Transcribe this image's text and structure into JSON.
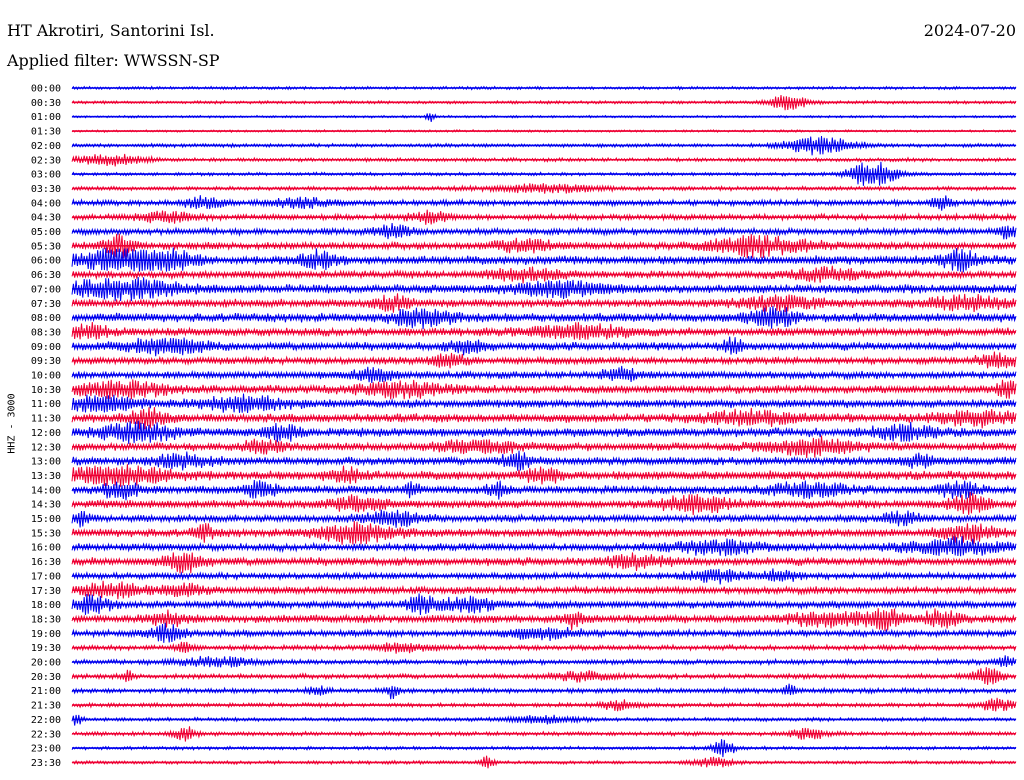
{
  "header": {
    "station": "HT Akrotiri, Santorini Isl.",
    "filter": "Applied filter: WWSSN-SP",
    "date": "2024-07-20"
  },
  "colors": {
    "trace_a": "#0000ee",
    "trace_b": "#ee0033",
    "text": "#000000",
    "background": "#ffffff"
  },
  "chart_data": {
    "type": "line",
    "title": "HT Akrotiri, Santorini Isl.",
    "subtitle": "Applied filter: WWSSN-SP",
    "ylabel": "HHZ - 3000",
    "xlabel": "",
    "grid": false,
    "rows": [
      {
        "label": "00:00",
        "color": "a",
        "noise": 0.18,
        "events": []
      },
      {
        "label": "00:30",
        "color": "b",
        "noise": 0.18,
        "events": [
          [
            0.76,
            0.9,
            0.02
          ]
        ]
      },
      {
        "label": "01:00",
        "color": "a",
        "noise": 0.14,
        "events": [
          [
            0.38,
            0.5,
            0.005
          ]
        ]
      },
      {
        "label": "01:30",
        "color": "b",
        "noise": 0.14,
        "events": []
      },
      {
        "label": "02:00",
        "color": "a",
        "noise": 0.22,
        "events": [
          [
            0.8,
            0.55,
            0.04
          ],
          [
            0.78,
            0.45,
            0.03
          ]
        ]
      },
      {
        "label": "02:30",
        "color": "b",
        "noise": 0.22,
        "events": [
          [
            0.04,
            0.55,
            0.04
          ]
        ]
      },
      {
        "label": "03:00",
        "color": "a",
        "noise": 0.2,
        "events": [
          [
            0.85,
            1.2,
            0.025
          ],
          [
            0.84,
            0.6,
            0.015
          ]
        ]
      },
      {
        "label": "03:30",
        "color": "b",
        "noise": 0.25,
        "events": [
          [
            0.5,
            0.4,
            0.06
          ]
        ]
      },
      {
        "label": "04:00",
        "color": "a",
        "noise": 0.35,
        "events": [
          [
            0.14,
            0.6,
            0.02
          ],
          [
            0.24,
            0.5,
            0.03
          ],
          [
            0.92,
            0.7,
            0.01
          ]
        ]
      },
      {
        "label": "04:30",
        "color": "b",
        "noise": 0.35,
        "events": [
          [
            0.1,
            0.5,
            0.03
          ],
          [
            0.38,
            0.6,
            0.02
          ]
        ]
      },
      {
        "label": "05:00",
        "color": "a",
        "noise": 0.4,
        "events": [
          [
            0.34,
            0.6,
            0.02
          ],
          [
            0.99,
            0.8,
            0.01
          ]
        ]
      },
      {
        "label": "05:30",
        "color": "b",
        "noise": 0.45,
        "events": [
          [
            0.05,
            1.1,
            0.015
          ],
          [
            0.72,
            1.0,
            0.01
          ],
          [
            0.48,
            0.7,
            0.03
          ],
          [
            0.73,
            0.8,
            0.06
          ]
        ]
      },
      {
        "label": "06:00",
        "color": "a",
        "noise": 0.55,
        "events": [
          [
            0.05,
            1.0,
            0.05
          ],
          [
            0.1,
            1.0,
            0.03
          ],
          [
            0.26,
            0.8,
            0.02
          ],
          [
            0.94,
            0.9,
            0.02
          ]
        ]
      },
      {
        "label": "06:30",
        "color": "b",
        "noise": 0.45,
        "events": [
          [
            0.48,
            0.6,
            0.04
          ],
          [
            0.8,
            0.6,
            0.04
          ]
        ]
      },
      {
        "label": "07:00",
        "color": "a",
        "noise": 0.55,
        "events": [
          [
            0.05,
            1.0,
            0.06
          ],
          [
            0.52,
            0.7,
            0.05
          ]
        ]
      },
      {
        "label": "07:30",
        "color": "b",
        "noise": 0.5,
        "events": [
          [
            0.34,
            0.7,
            0.02
          ],
          [
            0.75,
            0.6,
            0.05
          ],
          [
            0.95,
            0.7,
            0.04
          ]
        ]
      },
      {
        "label": "08:00",
        "color": "a",
        "noise": 0.55,
        "events": [
          [
            0.37,
            0.9,
            0.03
          ],
          [
            0.74,
            1.0,
            0.025
          ]
        ]
      },
      {
        "label": "08:30",
        "color": "b",
        "noise": 0.5,
        "events": [
          [
            0.02,
            0.7,
            0.02
          ],
          [
            0.54,
            0.7,
            0.05
          ]
        ]
      },
      {
        "label": "09:00",
        "color": "a",
        "noise": 0.5,
        "events": [
          [
            0.1,
            0.8,
            0.04
          ],
          [
            0.42,
            0.6,
            0.02
          ],
          [
            0.7,
            0.8,
            0.01
          ]
        ]
      },
      {
        "label": "09:30",
        "color": "b",
        "noise": 0.45,
        "events": [
          [
            0.4,
            0.6,
            0.02
          ],
          [
            0.98,
            0.7,
            0.02
          ]
        ]
      },
      {
        "label": "10:00",
        "color": "a",
        "noise": 0.45,
        "events": [
          [
            0.32,
            0.7,
            0.02
          ],
          [
            0.58,
            0.6,
            0.02
          ]
        ]
      },
      {
        "label": "10:30",
        "color": "b",
        "noise": 0.5,
        "events": [
          [
            0.05,
            0.8,
            0.05
          ],
          [
            0.35,
            0.7,
            0.05
          ],
          [
            0.99,
            0.9,
            0.01
          ]
        ]
      },
      {
        "label": "11:00",
        "color": "a",
        "noise": 0.5,
        "events": [
          [
            0.03,
            0.8,
            0.04
          ],
          [
            0.18,
            0.7,
            0.05
          ]
        ]
      },
      {
        "label": "11:30",
        "color": "b",
        "noise": 0.55,
        "events": [
          [
            0.08,
            0.9,
            0.02
          ],
          [
            0.72,
            0.6,
            0.05
          ],
          [
            0.96,
            0.7,
            0.04
          ]
        ]
      },
      {
        "label": "12:00",
        "color": "a",
        "noise": 0.55,
        "events": [
          [
            0.07,
            0.9,
            0.04
          ],
          [
            0.22,
            0.7,
            0.02
          ],
          [
            0.88,
            0.7,
            0.03
          ]
        ]
      },
      {
        "label": "12:30",
        "color": "b",
        "noise": 0.5,
        "events": [
          [
            0.2,
            0.7,
            0.02
          ],
          [
            0.43,
            0.7,
            0.04
          ],
          [
            0.78,
            0.8,
            0.05
          ]
        ]
      },
      {
        "label": "13:00",
        "color": "a",
        "noise": 0.5,
        "events": [
          [
            0.12,
            0.7,
            0.03
          ],
          [
            0.47,
            0.9,
            0.015
          ],
          [
            0.9,
            0.6,
            0.02
          ]
        ]
      },
      {
        "label": "13:30",
        "color": "b",
        "noise": 0.55,
        "events": [
          [
            0.05,
            0.9,
            0.06
          ],
          [
            0.29,
            0.7,
            0.02
          ],
          [
            0.5,
            0.7,
            0.02
          ]
        ]
      },
      {
        "label": "14:00",
        "color": "a",
        "noise": 0.5,
        "events": [
          [
            0.05,
            0.8,
            0.02
          ],
          [
            0.2,
            0.9,
            0.015
          ],
          [
            0.36,
            0.7,
            0.01
          ],
          [
            0.45,
            0.8,
            0.01
          ],
          [
            0.78,
            0.7,
            0.04
          ],
          [
            0.94,
            0.8,
            0.02
          ]
        ]
      },
      {
        "label": "14:30",
        "color": "b",
        "noise": 0.5,
        "events": [
          [
            0.3,
            0.7,
            0.03
          ],
          [
            0.66,
            0.8,
            0.04
          ],
          [
            0.95,
            0.9,
            0.02
          ]
        ]
      },
      {
        "label": "15:00",
        "color": "a",
        "noise": 0.45,
        "events": [
          [
            0.01,
            0.8,
            0.01
          ],
          [
            0.34,
            0.8,
            0.03
          ],
          [
            0.88,
            0.6,
            0.02
          ]
        ]
      },
      {
        "label": "15:30",
        "color": "b",
        "noise": 0.5,
        "events": [
          [
            0.14,
            0.8,
            0.01
          ],
          [
            0.3,
            1.0,
            0.04
          ],
          [
            0.95,
            0.8,
            0.03
          ]
        ]
      },
      {
        "label": "16:00",
        "color": "a",
        "noise": 0.45,
        "events": [
          [
            0.68,
            0.7,
            0.05
          ],
          [
            0.93,
            0.9,
            0.05
          ]
        ]
      },
      {
        "label": "16:30",
        "color": "b",
        "noise": 0.5,
        "events": [
          [
            0.12,
            1.0,
            0.02
          ],
          [
            0.6,
            0.7,
            0.03
          ]
        ]
      },
      {
        "label": "17:00",
        "color": "a",
        "noise": 0.4,
        "events": [
          [
            0.68,
            0.6,
            0.03
          ],
          [
            0.75,
            0.6,
            0.02
          ]
        ]
      },
      {
        "label": "17:30",
        "color": "b",
        "noise": 0.45,
        "events": [
          [
            0.04,
            0.7,
            0.04
          ],
          [
            0.12,
            0.6,
            0.02
          ]
        ]
      },
      {
        "label": "18:00",
        "color": "a",
        "noise": 0.45,
        "events": [
          [
            0.02,
            0.9,
            0.02
          ],
          [
            0.37,
            0.9,
            0.015
          ],
          [
            0.42,
            0.7,
            0.03
          ]
        ]
      },
      {
        "label": "18:30",
        "color": "b",
        "noise": 0.5,
        "events": [
          [
            0.1,
            0.7,
            0.02
          ],
          [
            0.53,
            0.9,
            0.01
          ],
          [
            0.8,
            0.7,
            0.04
          ],
          [
            0.86,
            1.0,
            0.02
          ],
          [
            0.92,
            0.8,
            0.02
          ]
        ]
      },
      {
        "label": "19:00",
        "color": "a",
        "noise": 0.4,
        "events": [
          [
            0.1,
            0.9,
            0.02
          ],
          [
            0.5,
            0.5,
            0.04
          ]
        ]
      },
      {
        "label": "19:30",
        "color": "b",
        "noise": 0.3,
        "events": [
          [
            0.12,
            0.5,
            0.01
          ],
          [
            0.35,
            0.5,
            0.03
          ]
        ]
      },
      {
        "label": "20:00",
        "color": "a",
        "noise": 0.3,
        "events": [
          [
            0.15,
            0.5,
            0.04
          ],
          [
            0.99,
            0.6,
            0.01
          ]
        ]
      },
      {
        "label": "20:30",
        "color": "b",
        "noise": 0.3,
        "events": [
          [
            0.06,
            0.6,
            0.005
          ],
          [
            0.54,
            0.5,
            0.03
          ],
          [
            0.97,
            0.9,
            0.015
          ]
        ]
      },
      {
        "label": "21:00",
        "color": "a",
        "noise": 0.3,
        "events": [
          [
            0.26,
            0.5,
            0.01
          ],
          [
            0.34,
            0.8,
            0.006
          ],
          [
            0.76,
            0.7,
            0.006
          ]
        ]
      },
      {
        "label": "21:30",
        "color": "b",
        "noise": 0.25,
        "events": [
          [
            0.58,
            0.5,
            0.02
          ],
          [
            0.98,
            0.6,
            0.02
          ]
        ]
      },
      {
        "label": "22:00",
        "color": "a",
        "noise": 0.22,
        "events": [
          [
            0.005,
            0.7,
            0.005
          ],
          [
            0.5,
            0.4,
            0.04
          ]
        ]
      },
      {
        "label": "22:30",
        "color": "b",
        "noise": 0.25,
        "events": [
          [
            0.12,
            0.7,
            0.012
          ],
          [
            0.78,
            0.5,
            0.02
          ]
        ]
      },
      {
        "label": "23:00",
        "color": "a",
        "noise": 0.2,
        "events": [
          [
            0.69,
            1.3,
            0.01
          ]
        ]
      },
      {
        "label": "23:30",
        "color": "b",
        "noise": 0.2,
        "events": [
          [
            0.44,
            0.6,
            0.008
          ],
          [
            0.68,
            0.5,
            0.02
          ]
        ]
      }
    ]
  }
}
